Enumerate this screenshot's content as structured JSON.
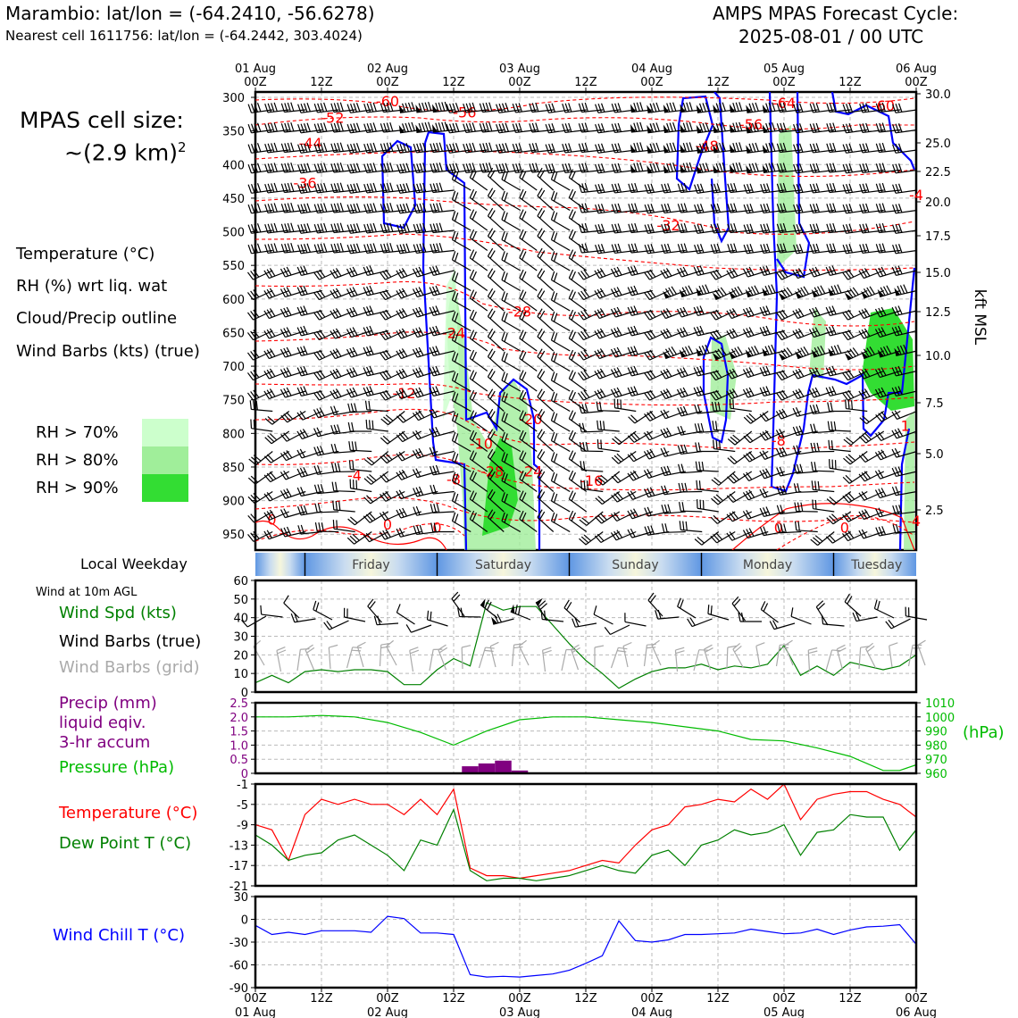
{
  "header": {
    "title_left": "Marambio: lat/lon = (-64.2410, -56.6278)",
    "subtitle_left": "Nearest cell 1611756: lat/lon = (-64.2442, 303.4024)",
    "title_right_line1": "AMPS MPAS Forecast Cycle:",
    "title_right_line2": "2025-08-01 / 00 UTC"
  },
  "cell_size": {
    "line1": "MPAS cell size:",
    "line2": "~(2.9 km)",
    "sup": "2"
  },
  "legend_upper": [
    {
      "text": "Temperature (°C)",
      "color": "#ff0000"
    },
    {
      "text": "RH (%) wrt liq. wat",
      "color": "#33dd33"
    },
    {
      "text": "Cloud/Precip outline",
      "color": "#0000ff"
    },
    {
      "text": "Wind Barbs (kts) (true)",
      "color": "#000000"
    }
  ],
  "rh_legend": [
    {
      "text": "RH > 70%",
      "color": "#ccffcc"
    },
    {
      "text": "RH > 80%",
      "color": "#a0ee9a"
    },
    {
      "text": "RH > 90%",
      "color": "#33dd33"
    }
  ],
  "time_axis": {
    "top_days": [
      "01 Aug",
      "02 Aug",
      "03 Aug",
      "04 Aug",
      "05 Aug",
      "06 Aug"
    ],
    "top_hours": [
      "00Z",
      "12Z",
      "00Z",
      "12Z",
      "00Z",
      "12Z",
      "00Z",
      "12Z",
      "00Z",
      "12Z",
      "00Z"
    ],
    "bottom_hours": [
      "00Z",
      "12Z",
      "00Z",
      "12Z",
      "00Z",
      "12Z",
      "00Z",
      "12Z",
      "00Z",
      "12Z",
      "00Z"
    ],
    "bottom_days": [
      "01 Aug",
      "02 Aug",
      "03 Aug",
      "04 Aug",
      "05 Aug",
      "06 Aug"
    ]
  },
  "weekday": {
    "label": "Local Weekday",
    "days": [
      "Friday",
      "Saturday",
      "Sunday",
      "Monday",
      "Tuesday"
    ]
  },
  "surface_legend": {
    "header": "Wind at 10m AGL",
    "wind_spd": {
      "text": "Wind Spd (kts)",
      "color": "#008000"
    },
    "barbs_true": {
      "text": "Wind Barbs (true)",
      "color": "#000000"
    },
    "barbs_grid": {
      "text": "Wind Barbs (grid)",
      "color": "#aaaaaa"
    },
    "precip_l1": "Precip (mm)",
    "precip_l2": "liquid eqiv.",
    "precip_l3": "3-hr accum",
    "precip_color": "#800080",
    "pressure": {
      "text": "Pressure (hPa)",
      "color": "#00bb00"
    },
    "pressure_unit": "(hPa)",
    "temp": {
      "text": "Temperature (°C)",
      "color": "#ff0000"
    },
    "dew": {
      "text": "Dew Point T (°C)",
      "color": "#008000"
    },
    "chill": {
      "text": "Wind Chill T (°C)",
      "color": "#0000ff"
    }
  },
  "chart_data": [
    {
      "type": "line",
      "name": "upper-air-cross-section",
      "x_range_hours": [
        0,
        120
      ],
      "y_axis_left_hPa": [
        "300",
        "350",
        "400",
        "450",
        "500",
        "550",
        "600",
        "650",
        "700",
        "750",
        "800",
        "850",
        "900",
        "950"
      ],
      "y_axis_right_kft": [
        "30.0",
        "25.0",
        "22.5",
        "20.0",
        "17.5",
        "15.0",
        "12.5",
        "10.0",
        "7.5",
        "5.0",
        "2.5"
      ],
      "y_right_label": "kft MSL",
      "temperature_labels": [
        {
          "t": "-60",
          "hour": 24,
          "hPa": 305
        },
        {
          "t": "-56",
          "hour": 38,
          "hPa": 322
        },
        {
          "t": "-52",
          "hour": 14,
          "hPa": 330
        },
        {
          "t": "-44",
          "hour": 10,
          "hPa": 368
        },
        {
          "t": "-36",
          "hour": 9,
          "hPa": 427
        },
        {
          "t": "-64",
          "hour": 96,
          "hPa": 308
        },
        {
          "t": "-60",
          "hour": 114,
          "hPa": 312
        },
        {
          "t": "-56",
          "hour": 90,
          "hPa": 340
        },
        {
          "t": "-48",
          "hour": 82,
          "hPa": 372
        },
        {
          "t": "-32",
          "hour": 75,
          "hPa": 490
        },
        {
          "t": "-28",
          "hour": 48,
          "hPa": 618
        },
        {
          "t": "-24",
          "hour": 36,
          "hPa": 650
        },
        {
          "t": "-12",
          "hour": 27,
          "hPa": 740
        },
        {
          "t": "-20",
          "hour": 50,
          "hPa": 778
        },
        {
          "t": "-10",
          "hour": 41,
          "hPa": 815
        },
        {
          "t": "-28",
          "hour": 43,
          "hPa": 856
        },
        {
          "t": "-24",
          "hour": 50,
          "hPa": 856
        },
        {
          "t": "-16",
          "hour": 61,
          "hPa": 870
        },
        {
          "t": "-8",
          "hour": 36,
          "hPa": 868
        },
        {
          "t": "-4",
          "hour": 18,
          "hPa": 862
        },
        {
          "t": "-8",
          "hour": 95,
          "hPa": 810
        },
        {
          "t": "0",
          "hour": 3,
          "hPa": 928
        },
        {
          "t": "0",
          "hour": 24,
          "hPa": 935
        },
        {
          "t": "0",
          "hour": 33,
          "hPa": 940
        },
        {
          "t": "0",
          "hour": 95,
          "hPa": 940
        },
        {
          "t": "0",
          "hour": 107,
          "hPa": 940
        },
        {
          "t": "1",
          "hour": 118,
          "hPa": 788
        },
        {
          "t": "4",
          "hour": 120,
          "hPa": 930
        },
        {
          "t": "-4",
          "hour": 120,
          "hPa": 445
        }
      ]
    },
    {
      "type": "line",
      "name": "wind-speed",
      "ylim": [
        0,
        60
      ],
      "yticks": [
        "0",
        "10",
        "20",
        "30",
        "40",
        "50",
        "60"
      ],
      "x_hours": [
        0,
        3,
        6,
        9,
        12,
        15,
        18,
        21,
        24,
        27,
        30,
        33,
        36,
        39,
        42,
        45,
        48,
        51,
        54,
        57,
        60,
        63,
        66,
        69,
        72,
        75,
        78,
        81,
        84,
        87,
        90,
        93,
        96,
        99,
        102,
        105,
        108,
        111,
        114,
        117,
        120
      ],
      "series": [
        {
          "values": [
            5,
            9,
            5,
            11,
            12,
            11,
            12,
            12,
            11,
            4,
            4,
            12,
            18,
            14,
            48,
            44,
            46,
            46,
            36,
            26,
            17,
            10,
            2,
            7,
            11,
            13,
            13,
            15,
            12,
            14,
            13,
            15,
            25,
            9,
            14,
            9,
            16,
            14,
            12,
            14,
            20
          ]
        }
      ]
    },
    {
      "type": "bar",
      "name": "precip-pressure",
      "precip_ylim": [
        0,
        2.5
      ],
      "precip_yticks": [
        "0",
        "0.5",
        "1.0",
        "1.5",
        "2.0",
        "2.5"
      ],
      "pressure_ylim": [
        960,
        1010
      ],
      "pressure_yticks": [
        "960",
        "970",
        "980",
        "990",
        "1000",
        "1010"
      ],
      "precip_bars": [
        {
          "hour": 39,
          "value": 0.25
        },
        {
          "hour": 42,
          "value": 0.35
        },
        {
          "hour": 45,
          "value": 0.45
        },
        {
          "hour": 48,
          "value": 0.1
        }
      ],
      "pressure_x_hours": [
        0,
        6,
        12,
        18,
        24,
        30,
        36,
        42,
        48,
        54,
        60,
        66,
        72,
        78,
        84,
        90,
        96,
        102,
        108,
        114,
        117,
        120
      ],
      "pressure_values": [
        1000,
        1000,
        1001,
        1000,
        996,
        989,
        980,
        990,
        998,
        1000,
        1000,
        998,
        996,
        993,
        990,
        984,
        983,
        978,
        972,
        962,
        962,
        966
      ]
    },
    {
      "type": "line",
      "name": "temperature-dewpoint",
      "ylim": [
        -21,
        -1
      ],
      "yticks": [
        "-1",
        "-5",
        "-9",
        "-13",
        "-17",
        "-21"
      ],
      "x_hours": [
        0,
        3,
        6,
        9,
        12,
        15,
        18,
        21,
        24,
        27,
        30,
        33,
        36,
        39,
        42,
        45,
        48,
        51,
        54,
        57,
        60,
        63,
        66,
        69,
        72,
        75,
        78,
        81,
        84,
        87,
        90,
        93,
        96,
        99,
        102,
        105,
        108,
        111,
        114,
        117,
        120
      ],
      "series": [
        {
          "name": "temperature",
          "values": [
            -9,
            -10,
            -16,
            -7,
            -4,
            -5,
            -4,
            -5,
            -5,
            -7,
            -4,
            -7,
            -2,
            -17.5,
            -19,
            -19,
            -19.5,
            -19,
            -18.5,
            -18,
            -17,
            -16,
            -16.5,
            -13,
            -10,
            -9,
            -5.5,
            -5,
            -4,
            -4.5,
            -2,
            -4,
            -1,
            -8,
            -4,
            -3,
            -2.5,
            -2.5,
            -4,
            -5,
            -7.5
          ]
        },
        {
          "name": "dewpoint",
          "values": [
            -11,
            -13,
            -16,
            -15,
            -14.5,
            -12,
            -11,
            -13,
            -15,
            -18,
            -12,
            -13,
            -6,
            -18,
            -20,
            -19.5,
            -19.5,
            -20,
            -19.5,
            -19,
            -18,
            -17,
            -18,
            -18.5,
            -15,
            -14,
            -17,
            -13,
            -12,
            -10,
            -11,
            -10.5,
            -9,
            -15,
            -10.5,
            -10,
            -7,
            -7.5,
            -7.5,
            -14,
            -10
          ]
        }
      ]
    },
    {
      "type": "line",
      "name": "wind-chill",
      "ylim": [
        -90,
        30
      ],
      "yticks": [
        "30",
        "0",
        "-30",
        "-60",
        "-90"
      ],
      "x_hours": [
        0,
        3,
        6,
        9,
        12,
        15,
        18,
        21,
        24,
        27,
        30,
        33,
        36,
        39,
        42,
        45,
        48,
        51,
        54,
        57,
        60,
        63,
        66,
        69,
        72,
        75,
        78,
        81,
        84,
        87,
        90,
        93,
        96,
        99,
        102,
        105,
        108,
        111,
        114,
        117,
        120
      ],
      "series": [
        {
          "values": [
            -8,
            -20,
            -17,
            -20,
            -15,
            -15,
            -15,
            -17,
            4,
            1,
            -18,
            -18,
            -20,
            -73,
            -76,
            -75,
            -76,
            -74,
            -72,
            -67,
            -58,
            -48,
            -2,
            -28,
            -30,
            -27,
            -20,
            -20,
            -19,
            -18,
            -13,
            -16,
            -19,
            -18,
            -13,
            -20,
            -14,
            -10,
            -9,
            -7,
            -33
          ]
        }
      ]
    }
  ]
}
